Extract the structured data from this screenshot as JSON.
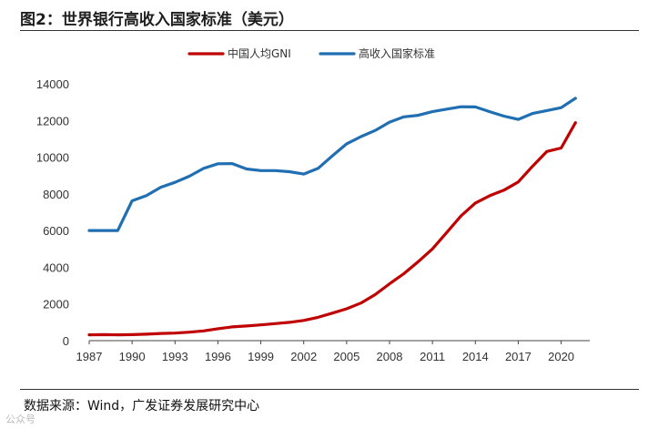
{
  "title": "图2：世界银行高收入国家标准（美元）",
  "source": "数据来源：Wind，广发证券发展研究中心",
  "watermark": "公众号",
  "chart_data": {
    "type": "line",
    "title": "图2：世界银行高收入国家标准（美元）",
    "xlabel": "",
    "ylabel": "",
    "x": [
      1987,
      1988,
      1989,
      1990,
      1991,
      1992,
      1993,
      1994,
      1995,
      1996,
      1997,
      1998,
      1999,
      2000,
      2001,
      2002,
      2003,
      2004,
      2005,
      2006,
      2007,
      2008,
      2009,
      2010,
      2011,
      2012,
      2013,
      2014,
      2015,
      2016,
      2017,
      2018,
      2019,
      2020,
      2021
    ],
    "xlim": [
      1987,
      2022
    ],
    "xticks": [
      1987,
      1990,
      1993,
      1996,
      1999,
      2002,
      2005,
      2008,
      2011,
      2014,
      2017,
      2020
    ],
    "ylim": [
      0,
      14000
    ],
    "yticks": [
      0,
      2000,
      4000,
      6000,
      8000,
      10000,
      12000,
      14000
    ],
    "legend_position": "top",
    "series": [
      {
        "name": "中国人均GNI",
        "color": "#c00000",
        "values": [
          320,
          330,
          320,
          330,
          350,
          390,
          410,
          460,
          530,
          650,
          750,
          800,
          860,
          930,
          1000,
          1100,
          1270,
          1500,
          1740,
          2050,
          2510,
          3100,
          3650,
          4300,
          5000,
          5900,
          6800,
          7500,
          7900,
          8200,
          8650,
          9500,
          10310,
          10500,
          11880
        ]
      },
      {
        "name": "高收入国家标准",
        "color": "#1f6fb2",
        "values": [
          6000,
          6000,
          6000,
          7620,
          7910,
          8360,
          8630,
          8960,
          9390,
          9640,
          9650,
          9360,
          9270,
          9270,
          9210,
          9080,
          9390,
          10070,
          10730,
          11120,
          11460,
          11910,
          12200,
          12280,
          12480,
          12620,
          12750,
          12740,
          12480,
          12240,
          12060,
          12380,
          12540,
          12700,
          13210
        ]
      }
    ]
  }
}
